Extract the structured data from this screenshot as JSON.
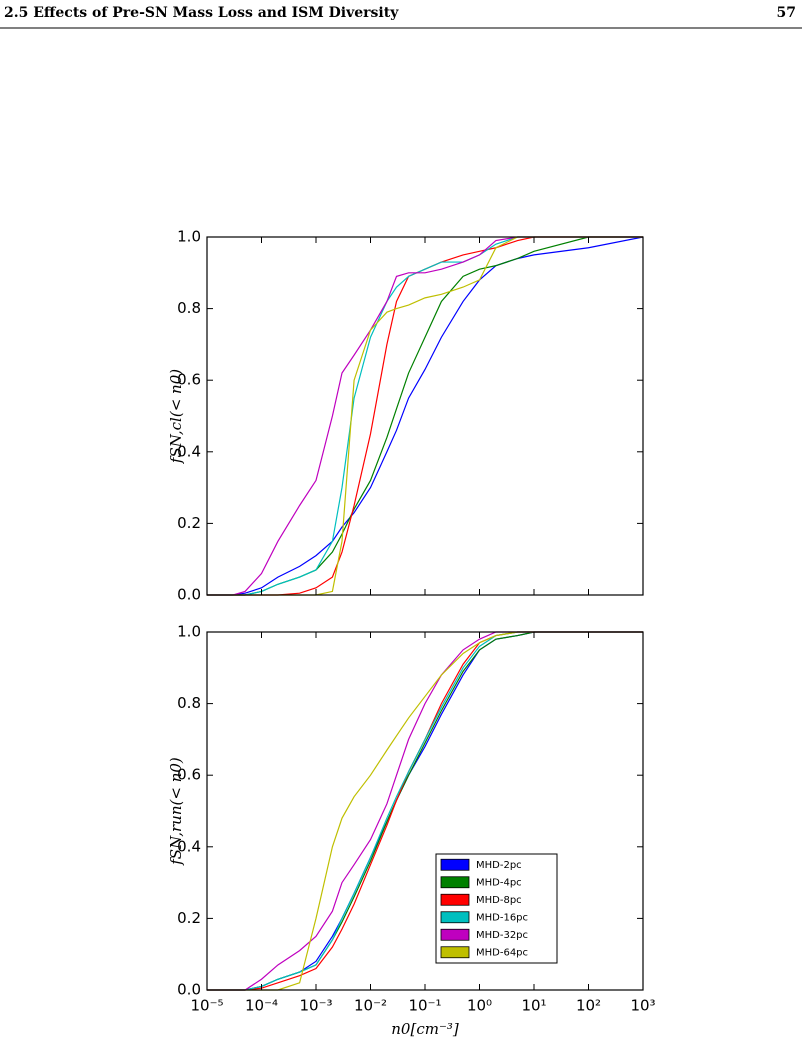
{
  "header": {
    "title": "2.5 Effects of Pre-SN Mass Loss and ISM Diversity",
    "page": "57"
  },
  "chart_data": [
    {
      "type": "line",
      "log_x": true,
      "show_xtick_labels": false,
      "ylabel": "fSN,cl(< n0)",
      "x": [
        1e-05,
        3e-05,
        5e-05,
        0.0001,
        0.0002,
        0.0005,
        0.001,
        0.002,
        0.003,
        0.005,
        0.01,
        0.02,
        0.03,
        0.05,
        0.1,
        0.2,
        0.5,
        1,
        2,
        5,
        10,
        100,
        1000
      ],
      "xlim": [
        1e-05,
        1000
      ],
      "xticks": [
        1e-05,
        0.0001,
        0.001,
        0.01,
        0.1,
        1,
        10,
        100,
        1000
      ],
      "ylim": [
        0,
        1
      ],
      "yticks": [
        {
          "value": 0,
          "label": "0.0"
        },
        {
          "value": 0.2,
          "label": "0.2"
        },
        {
          "value": 0.4,
          "label": "0.4"
        },
        {
          "value": 0.6,
          "label": "0.6"
        },
        {
          "value": 0.8,
          "label": "0.8"
        },
        {
          "value": 1,
          "label": "1.0"
        }
      ],
      "series": [
        {
          "color": "#0000ff",
          "values": [
            0,
            0,
            0.005,
            0.02,
            0.05,
            0.08,
            0.11,
            0.15,
            0.19,
            0.23,
            0.3,
            0.4,
            0.46,
            0.55,
            0.63,
            0.72,
            0.82,
            0.88,
            0.92,
            0.94,
            0.95,
            0.97,
            1
          ]
        },
        {
          "color": "#008000",
          "values": [
            0,
            0,
            0,
            0.01,
            0.03,
            0.05,
            0.07,
            0.12,
            0.17,
            0.24,
            0.32,
            0.44,
            0.52,
            0.62,
            0.72,
            0.82,
            0.89,
            0.91,
            0.92,
            0.94,
            0.96,
            1,
            1
          ]
        },
        {
          "color": "#ff0000",
          "values": [
            0,
            0,
            0,
            0,
            0,
            0.005,
            0.02,
            0.05,
            0.12,
            0.25,
            0.45,
            0.7,
            0.82,
            0.89,
            0.91,
            0.93,
            0.95,
            0.96,
            0.97,
            0.99,
            1,
            1,
            1
          ]
        },
        {
          "color": "#00bfbf",
          "values": [
            0,
            0,
            0,
            0.01,
            0.03,
            0.05,
            0.07,
            0.15,
            0.3,
            0.55,
            0.72,
            0.82,
            0.86,
            0.89,
            0.91,
            0.93,
            0.93,
            0.95,
            0.98,
            1,
            1,
            1,
            1
          ]
        },
        {
          "color": "#bf00bf",
          "values": [
            0,
            0,
            0.01,
            0.06,
            0.15,
            0.25,
            0.32,
            0.5,
            0.62,
            0.67,
            0.74,
            0.82,
            0.89,
            0.9,
            0.9,
            0.91,
            0.93,
            0.95,
            0.99,
            1,
            1,
            1,
            1
          ]
        },
        {
          "color": "#bfbf00",
          "values": [
            0,
            0,
            0,
            0,
            0,
            0,
            0,
            0.01,
            0.15,
            0.6,
            0.74,
            0.79,
            0.8,
            0.81,
            0.83,
            0.84,
            0.86,
            0.88,
            0.97,
            1,
            1,
            1,
            1
          ]
        }
      ]
    },
    {
      "type": "line",
      "log_x": true,
      "legend": "lower right",
      "ylabel": "fSN,run(< n0)",
      "xlabel": "n0[cm⁻³]",
      "x": [
        1e-05,
        3e-05,
        5e-05,
        0.0001,
        0.0002,
        0.0005,
        0.001,
        0.002,
        0.003,
        0.005,
        0.01,
        0.02,
        0.03,
        0.05,
        0.1,
        0.2,
        0.5,
        1,
        2,
        5,
        10,
        100,
        1000
      ],
      "xlim": [
        1e-05,
        1000
      ],
      "xticks": [
        {
          "value": 1e-05,
          "label": "10⁻⁵"
        },
        {
          "value": 0.0001,
          "label": "10⁻⁴"
        },
        {
          "value": 0.001,
          "label": "10⁻³"
        },
        {
          "value": 0.01,
          "label": "10⁻²"
        },
        {
          "value": 0.1,
          "label": "10⁻¹"
        },
        {
          "value": 1,
          "label": "10⁰"
        },
        {
          "value": 10,
          "label": "10¹"
        },
        {
          "value": 100,
          "label": "10²"
        },
        {
          "value": 1000,
          "label": "10³"
        }
      ],
      "ylim": [
        0,
        1
      ],
      "yticks": [
        {
          "value": 0,
          "label": "0.0"
        },
        {
          "value": 0.2,
          "label": "0.2"
        },
        {
          "value": 0.4,
          "label": "0.4"
        },
        {
          "value": 0.6,
          "label": "0.6"
        },
        {
          "value": 0.8,
          "label": "0.8"
        },
        {
          "value": 1,
          "label": "1.0"
        }
      ],
      "series": [
        {
          "name": "MHD-2pc",
          "color": "#0000ff",
          "values": [
            0,
            0,
            0,
            0.01,
            0.03,
            0.05,
            0.08,
            0.15,
            0.2,
            0.27,
            0.37,
            0.47,
            0.53,
            0.6,
            0.68,
            0.77,
            0.88,
            0.95,
            0.98,
            0.99,
            1,
            1,
            1
          ]
        },
        {
          "name": "MHD-4pc",
          "color": "#008000",
          "values": [
            0,
            0,
            0,
            0.01,
            0.03,
            0.05,
            0.07,
            0.14,
            0.19,
            0.26,
            0.36,
            0.47,
            0.53,
            0.6,
            0.69,
            0.78,
            0.89,
            0.95,
            0.98,
            0.99,
            1,
            1,
            1
          ]
        },
        {
          "name": "MHD-8pc",
          "color": "#ff0000",
          "values": [
            0,
            0,
            0,
            0.005,
            0.02,
            0.04,
            0.06,
            0.12,
            0.17,
            0.24,
            0.35,
            0.46,
            0.53,
            0.61,
            0.7,
            0.8,
            0.91,
            0.97,
            0.99,
            1,
            1,
            1,
            1
          ]
        },
        {
          "name": "MHD-16pc",
          "color": "#00bfbf",
          "values": [
            0,
            0,
            0,
            0.01,
            0.03,
            0.05,
            0.07,
            0.14,
            0.2,
            0.27,
            0.37,
            0.48,
            0.54,
            0.61,
            0.7,
            0.79,
            0.9,
            0.96,
            0.99,
            1,
            1,
            1,
            1
          ]
        },
        {
          "name": "MHD-32pc",
          "color": "#bf00bf",
          "values": [
            0,
            0,
            0,
            0.03,
            0.07,
            0.11,
            0.15,
            0.22,
            0.3,
            0.35,
            0.42,
            0.52,
            0.6,
            0.7,
            0.8,
            0.88,
            0.95,
            0.98,
            1,
            1,
            1,
            1,
            1
          ]
        },
        {
          "name": "MHD-64pc",
          "color": "#bfbf00",
          "values": [
            0,
            0,
            0,
            0,
            0,
            0.02,
            0.2,
            0.4,
            0.48,
            0.54,
            0.6,
            0.67,
            0.71,
            0.76,
            0.82,
            0.88,
            0.94,
            0.97,
            0.99,
            1,
            1,
            1,
            1
          ]
        }
      ]
    }
  ]
}
